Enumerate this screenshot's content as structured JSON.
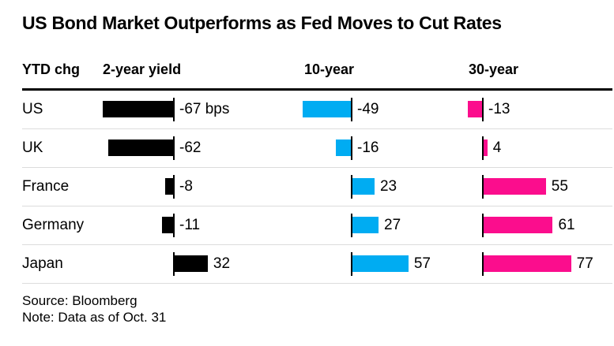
{
  "title": "US Bond Market Outperforms as Fed Moves to Cut Rates",
  "source_note": {
    "source": "Source: Bloomberg",
    "note": "Note: Data as of Oct. 31"
  },
  "chart_data": {
    "type": "bar",
    "orientation": "horizontal",
    "unit": "bps",
    "group_label": "YTD chg",
    "columns": [
      {
        "label": "2-year yield",
        "color": "#000000"
      },
      {
        "label": "10-year",
        "color": "#00acf2"
      },
      {
        "label": "30-year",
        "color": "#fb0d8d"
      }
    ],
    "rows": [
      {
        "country": "US",
        "values": [
          -67,
          -49,
          -13
        ],
        "labels": [
          "-67 bps",
          "-49",
          "-13"
        ]
      },
      {
        "country": "UK",
        "values": [
          -62,
          -16,
          4
        ],
        "labels": [
          "-62",
          "-16",
          "4"
        ]
      },
      {
        "country": "France",
        "values": [
          -8,
          23,
          55
        ],
        "labels": [
          "-8",
          "23",
          "55"
        ]
      },
      {
        "country": "Germany",
        "values": [
          -11,
          27,
          61
        ],
        "labels": [
          "-11",
          "27",
          "61"
        ]
      },
      {
        "country": "Japan",
        "values": [
          32,
          57,
          77
        ],
        "labels": [
          "32",
          "57",
          "77"
        ]
      }
    ]
  }
}
